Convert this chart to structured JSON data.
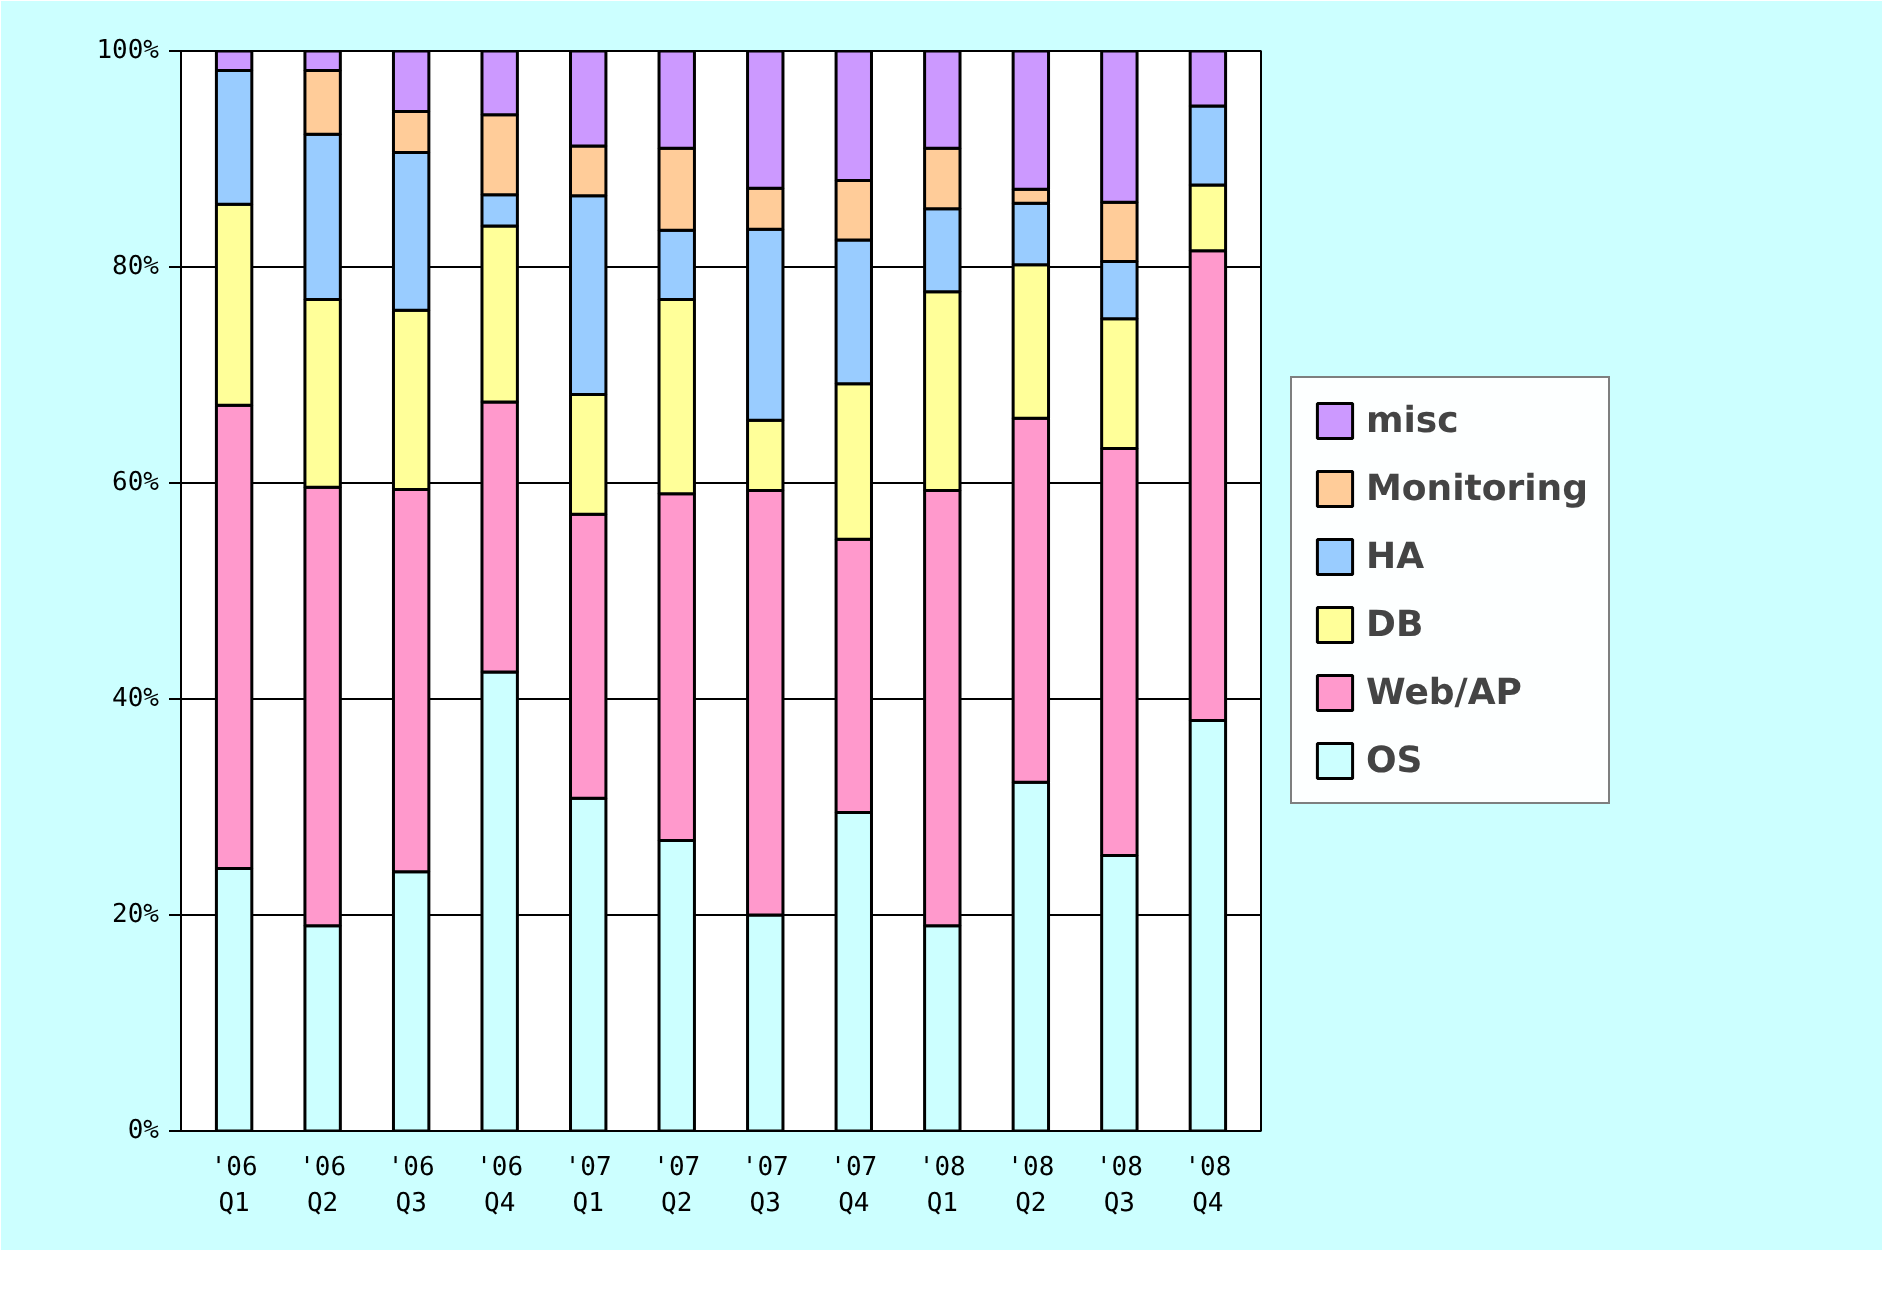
{
  "chart_data": {
    "type": "bar",
    "stacked": true,
    "categories": [
      "'06\nQ1",
      "'06\nQ2",
      "'06\nQ3",
      "'06\nQ4",
      "'07\nQ1",
      "'07\nQ2",
      "'07\nQ3",
      "'07\nQ4",
      "'08\nQ1",
      "'08\nQ2",
      "'08\nQ3",
      "'08\nQ4"
    ],
    "series": [
      {
        "name": "OS",
        "color": "#ccffff",
        "values": [
          24.3,
          19,
          24,
          42.5,
          30.8,
          26.9,
          20,
          29.5,
          19,
          32.3,
          25.5,
          38
        ]
      },
      {
        "name": "Web/AP",
        "color": "#ff99cc",
        "values": [
          42.9,
          40.6,
          35.4,
          25,
          26.3,
          32.1,
          39.3,
          25.3,
          40.3,
          33.7,
          37.7,
          43.5
        ]
      },
      {
        "name": "DB",
        "color": "#ffff99",
        "values": [
          18.6,
          17.4,
          16.6,
          16.3,
          11.1,
          18,
          6.5,
          14.4,
          18.4,
          14.2,
          12,
          6.1
        ]
      },
      {
        "name": "HA",
        "color": "#99ccff",
        "values": [
          12.4,
          15.3,
          14.6,
          2.9,
          18.4,
          6.4,
          17.7,
          13.3,
          7.7,
          5.7,
          5.3,
          7.3
        ]
      },
      {
        "name": "Monitoring",
        "color": "#ffcc99",
        "values": [
          0,
          5.9,
          3.8,
          7.4,
          4.6,
          7.6,
          3.8,
          5.5,
          5.6,
          1.3,
          5.5,
          0
        ]
      },
      {
        "name": "misc",
        "color": "#cc99ff",
        "values": [
          1.8,
          1.8,
          5.6,
          5.9,
          8.8,
          9,
          12.7,
          12,
          9,
          12.8,
          14,
          5.1
        ]
      }
    ],
    "ylim": [
      0,
      100
    ],
    "yticks": [
      {
        "value": 0,
        "label": "0%"
      },
      {
        "value": 20,
        "label": "20%"
      },
      {
        "value": 40,
        "label": "40%"
      },
      {
        "value": 60,
        "label": "60%"
      },
      {
        "value": 80,
        "label": "80%"
      },
      {
        "value": 100,
        "label": "100%"
      }
    ],
    "grid": "y",
    "legend": "right"
  }
}
